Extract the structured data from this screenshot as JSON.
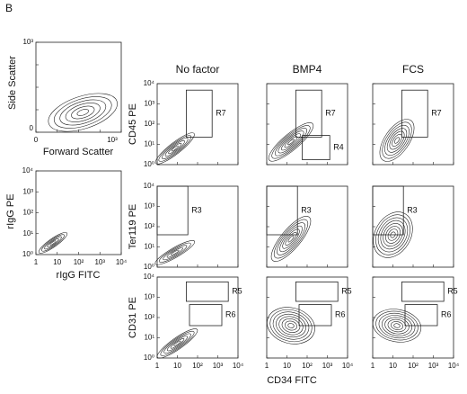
{
  "panel_label": "B",
  "scatter_plot": {
    "y_label": "Side Scatter",
    "x_label": "Forward Scatter",
    "y_ticks": [
      "10³",
      "0"
    ],
    "x_ticks": [
      "0",
      "10³"
    ]
  },
  "isotype_plot": {
    "y_label": "rIgG PE",
    "x_label": "rIgG FITC"
  },
  "log_ticks_y": [
    "10⁴",
    "10³",
    "10²",
    "10¹",
    "10⁰"
  ],
  "log_ticks_x": [
    "1",
    "10",
    "10²",
    "10³",
    "10⁴"
  ],
  "columns": [
    "No factor",
    "BMP4",
    "FCS"
  ],
  "rows": [
    {
      "label": "CD45 PE",
      "gates": [
        [
          "R7"
        ],
        [
          "R7",
          "R4"
        ],
        [
          "R7"
        ]
      ]
    },
    {
      "label": "Ter119 PE",
      "gates": [
        [
          "R3"
        ],
        [
          "R3"
        ],
        [
          "R3"
        ]
      ]
    },
    {
      "label": "CD31 PE",
      "gates": [
        [
          "R5",
          "R6"
        ],
        [
          "R5",
          "R6"
        ],
        [
          "R5",
          "R6"
        ]
      ]
    }
  ],
  "x_label": "CD34 FITC"
}
